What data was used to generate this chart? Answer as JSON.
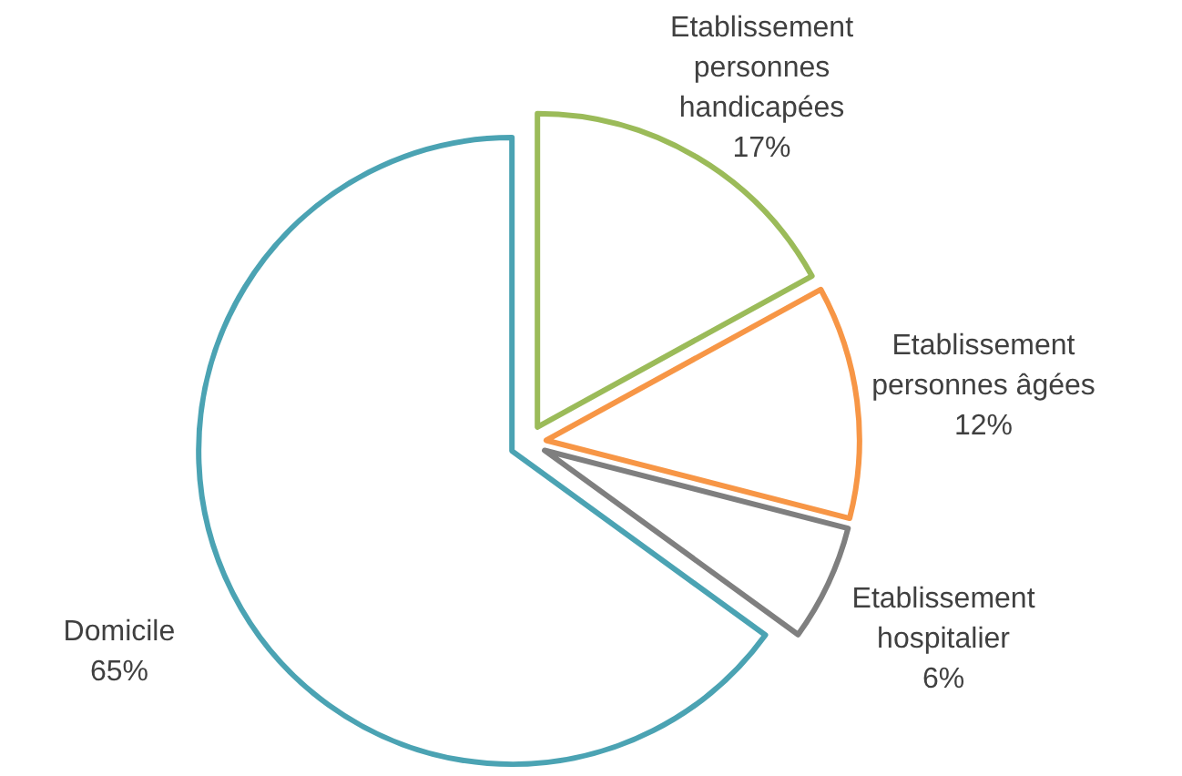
{
  "chart_data": {
    "type": "pie",
    "categories": [
      "Etablissement personnes handicapées",
      "Etablissement personnes âgées",
      "Etablissement hospitalier",
      "Domicile"
    ],
    "values": [
      17,
      12,
      6,
      65
    ],
    "value_labels": [
      "17%",
      "12%",
      "6%",
      "65%"
    ],
    "colors": [
      "#9bbb59",
      "#f79646",
      "#7f7f7f",
      "#4ba3b3"
    ],
    "legend": false
  }
}
